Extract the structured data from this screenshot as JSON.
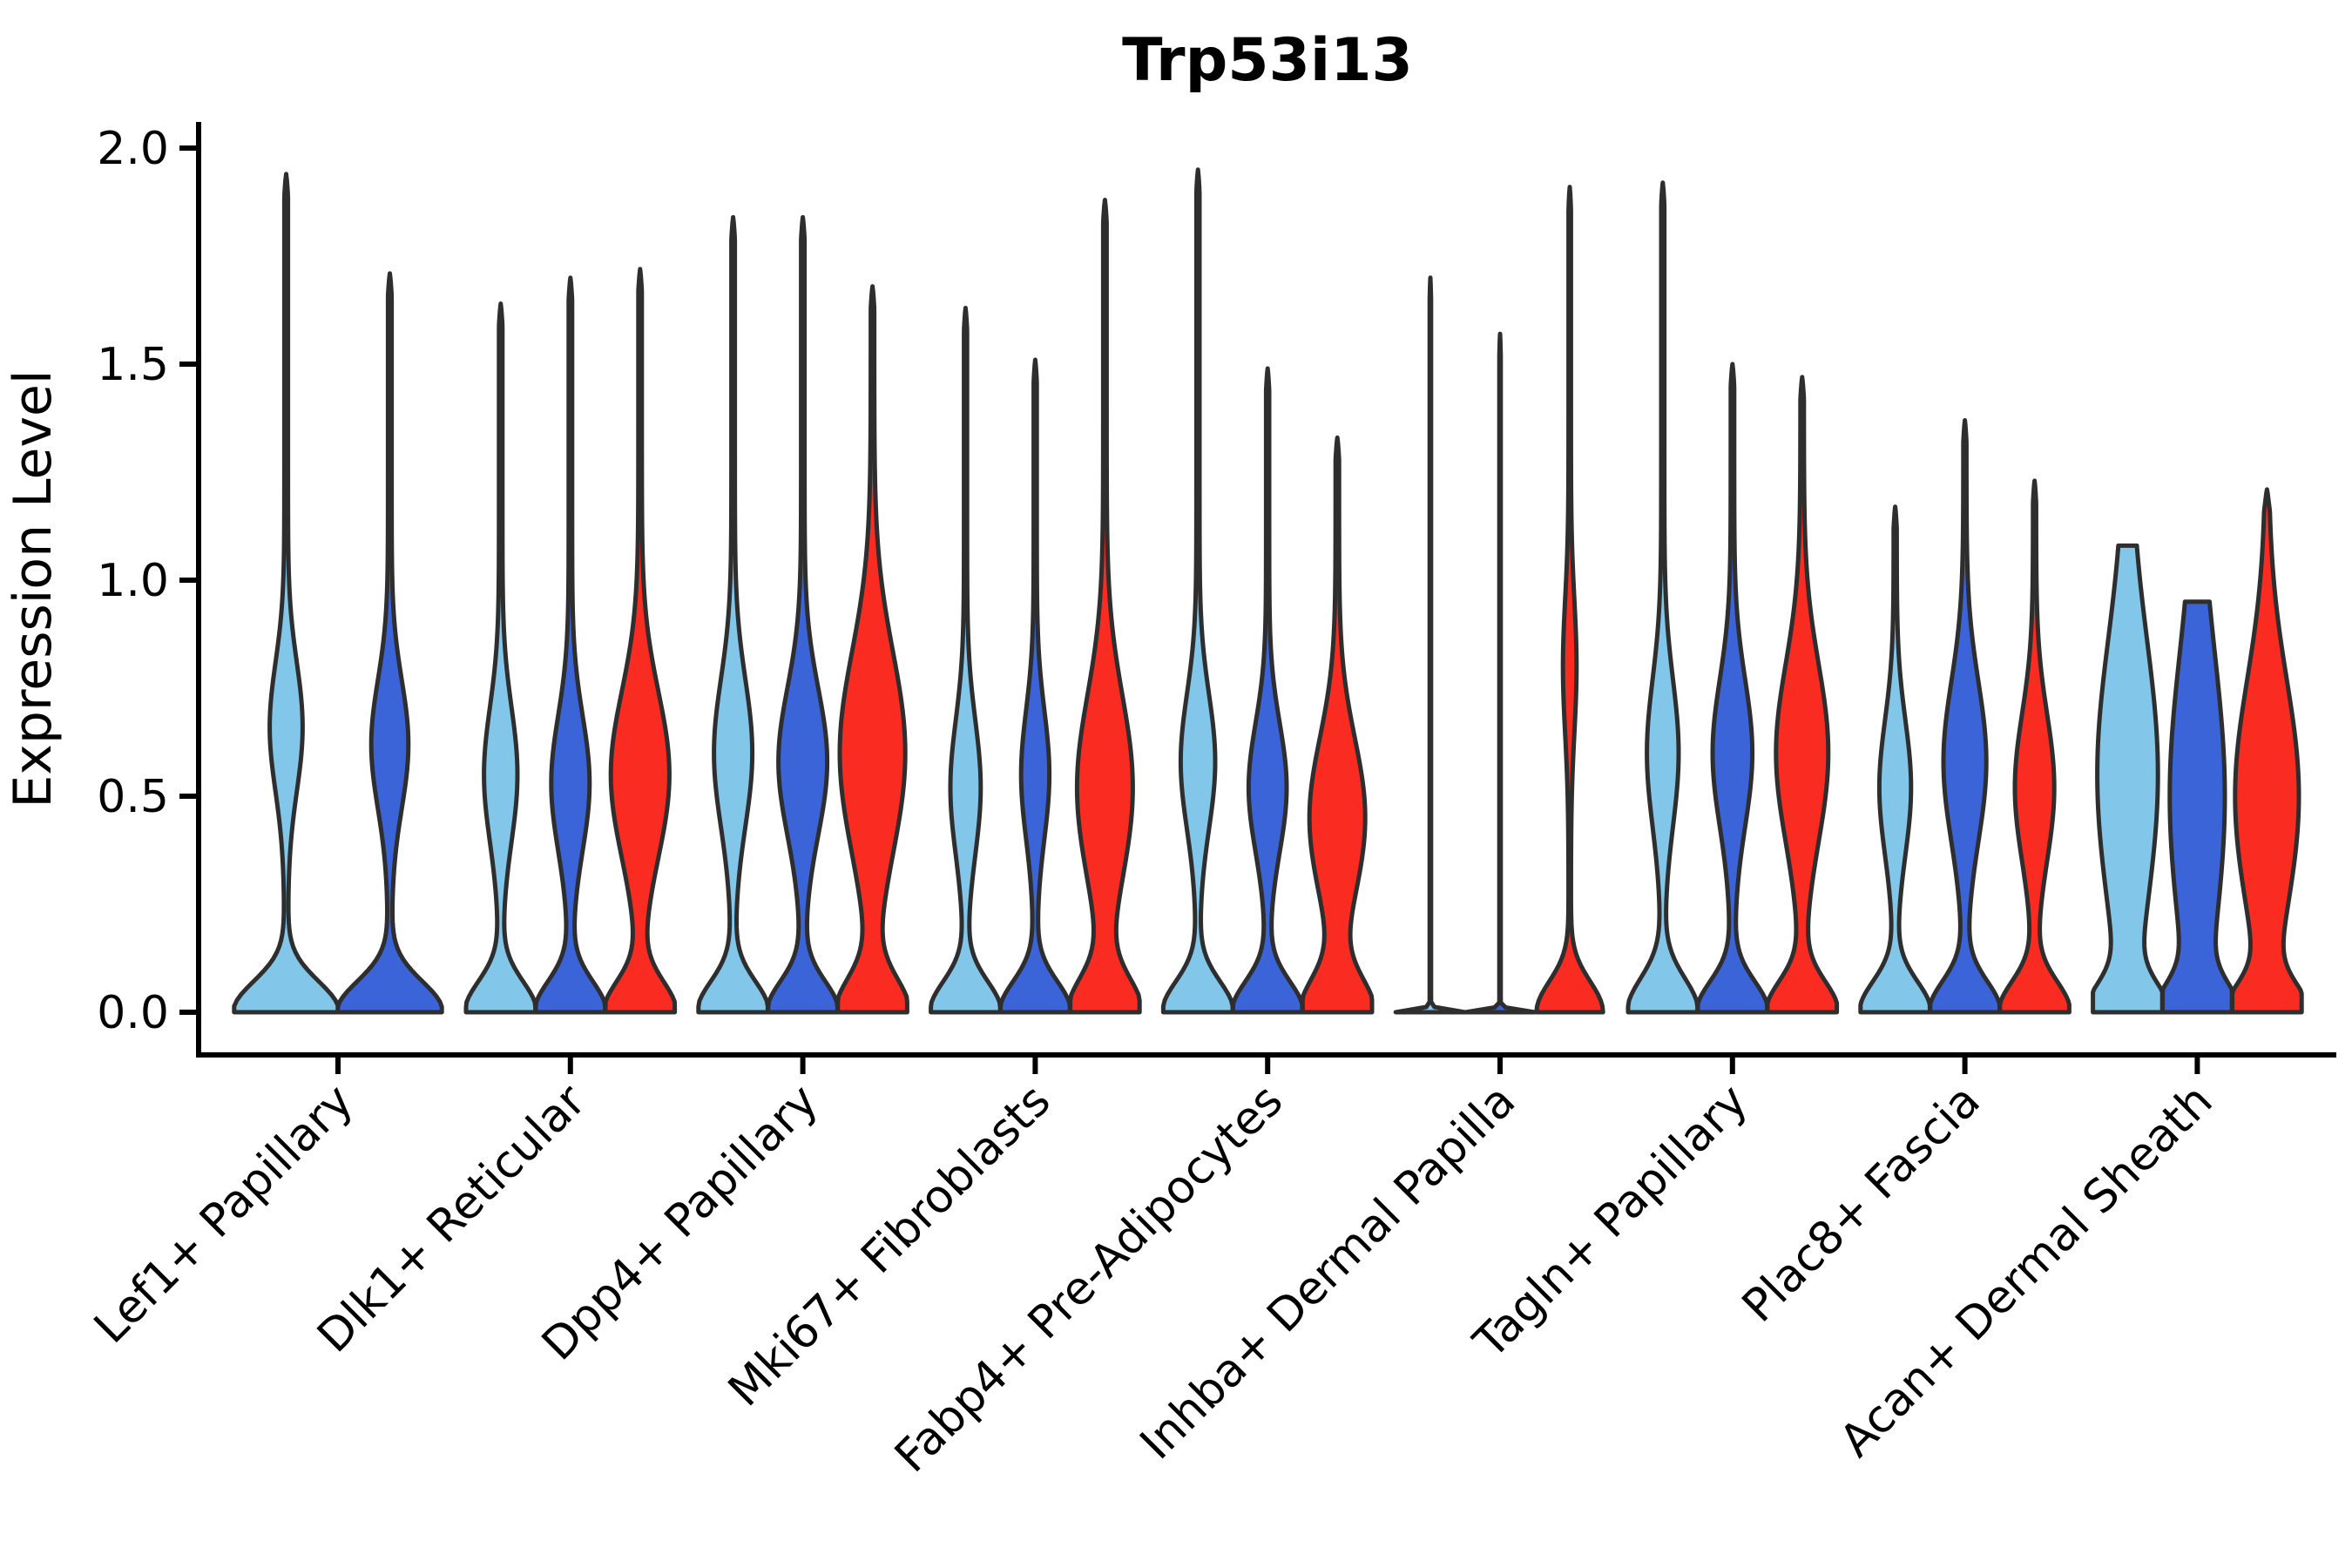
{
  "chart_data": {
    "type": "violin",
    "title": "Trp53i13",
    "ylabel": "Expression Level",
    "xlabel": "",
    "ylim": [
      0,
      2.06
    ],
    "yticks": [
      0.0,
      0.5,
      1.0,
      1.5,
      2.0
    ],
    "ytick_labels": [
      "0.0",
      "0.5",
      "1.0",
      "1.5",
      "2.0"
    ],
    "grid": false,
    "legend_position": "none",
    "x_tick_rotation_deg": 45,
    "series": [
      "light_blue",
      "dark_blue",
      "red"
    ],
    "series_colors": {
      "light_blue": "#82C7EA",
      "dark_blue": "#3B64D9",
      "red": "#FA2B21",
      "violin_outline": "#2E2E2E",
      "axis_color": "#000000"
    },
    "groups": [
      {
        "category": "Lef1+ Papillary",
        "violins": [
          {
            "series": "light_blue",
            "peak": 1.94,
            "base_w": 0.98,
            "base_s": 0.1,
            "bulge_c": 0.66,
            "bulge_w": 0.28,
            "bulge_s": 0.21,
            "stem_w": 0.035,
            "tip": "point"
          },
          {
            "series": "dark_blue",
            "peak": 1.71,
            "base_w": 0.98,
            "base_s": 0.1,
            "bulge_c": 0.62,
            "bulge_w": 0.32,
            "bulge_s": 0.21,
            "stem_w": 0.035,
            "tip": "point"
          }
        ]
      },
      {
        "category": "Dlk1+ Reticular",
        "violins": [
          {
            "series": "light_blue",
            "peak": 1.64,
            "base_w": 0.98,
            "base_s": 0.1,
            "bulge_c": 0.55,
            "bulge_w": 0.43,
            "bulge_s": 0.22,
            "stem_w": 0.05,
            "tip": "point"
          },
          {
            "series": "dark_blue",
            "peak": 1.7,
            "base_w": 0.98,
            "base_s": 0.1,
            "bulge_c": 0.53,
            "bulge_w": 0.5,
            "bulge_s": 0.22,
            "stem_w": 0.05,
            "tip": "point"
          },
          {
            "series": "red",
            "peak": 1.72,
            "base_w": 0.98,
            "base_s": 0.1,
            "bulge_c": 0.55,
            "bulge_w": 0.79,
            "bulge_s": 0.27,
            "stem_w": 0.05,
            "tip": "point"
          }
        ]
      },
      {
        "category": "Dpp4+ Papillary",
        "violins": [
          {
            "series": "light_blue",
            "peak": 1.84,
            "base_w": 0.98,
            "base_s": 0.1,
            "bulge_c": 0.6,
            "bulge_w": 0.5,
            "bulge_s": 0.24,
            "stem_w": 0.05,
            "tip": "point"
          },
          {
            "series": "dark_blue",
            "peak": 1.84,
            "base_w": 0.98,
            "base_s": 0.1,
            "bulge_c": 0.58,
            "bulge_w": 0.65,
            "bulge_s": 0.24,
            "stem_w": 0.05,
            "tip": "point"
          },
          {
            "series": "red",
            "peak": 1.68,
            "base_w": 0.98,
            "base_s": 0.11,
            "bulge_c": 0.6,
            "bulge_w": 0.89,
            "bulge_s": 0.33,
            "stem_w": 0.05,
            "tip": "point"
          }
        ]
      },
      {
        "category": "Mki67+ Fibroblasts",
        "violins": [
          {
            "series": "light_blue",
            "peak": 1.63,
            "base_w": 0.98,
            "base_s": 0.1,
            "bulge_c": 0.52,
            "bulge_w": 0.39,
            "bulge_s": 0.22,
            "stem_w": 0.045,
            "tip": "point"
          },
          {
            "series": "dark_blue",
            "peak": 1.51,
            "base_w": 0.98,
            "base_s": 0.1,
            "bulge_c": 0.55,
            "bulge_w": 0.36,
            "bulge_s": 0.21,
            "stem_w": 0.045,
            "tip": "point"
          },
          {
            "series": "red",
            "peak": 1.88,
            "base_w": 0.98,
            "base_s": 0.11,
            "bulge_c": 0.52,
            "bulge_w": 0.75,
            "bulge_s": 0.3,
            "stem_w": 0.05,
            "tip": "point"
          }
        ]
      },
      {
        "category": "Fabp4+ Pre-Adipocytes",
        "violins": [
          {
            "series": "light_blue",
            "peak": 1.95,
            "base_w": 0.98,
            "base_s": 0.1,
            "bulge_c": 0.58,
            "bulge_w": 0.45,
            "bulge_s": 0.22,
            "stem_w": 0.045,
            "tip": "point"
          },
          {
            "series": "dark_blue",
            "peak": 1.49,
            "base_w": 0.98,
            "base_s": 0.1,
            "bulge_c": 0.52,
            "bulge_w": 0.5,
            "bulge_s": 0.21,
            "stem_w": 0.045,
            "tip": "point"
          },
          {
            "series": "red",
            "peak": 1.33,
            "base_w": 0.98,
            "base_s": 0.11,
            "bulge_c": 0.45,
            "bulge_w": 0.75,
            "bulge_s": 0.26,
            "stem_w": 0.05,
            "tip": "point"
          }
        ]
      },
      {
        "category": "Inhba+ Dermal Papilla",
        "violins": [
          {
            "series": "light_blue",
            "peak": 1.7,
            "base_w": 0.98,
            "base_s": 0.008,
            "bulge_c": 0.5,
            "bulge_w": 0.0,
            "bulge_s": 0.2,
            "stem_w": 0.02,
            "tip": "point",
            "collapsed": true
          },
          {
            "series": "dark_blue",
            "peak": 1.57,
            "base_w": 0.98,
            "base_s": 0.008,
            "bulge_c": 0.5,
            "bulge_w": 0.0,
            "bulge_s": 0.2,
            "stem_w": 0.02,
            "tip": "point",
            "collapsed": true
          },
          {
            "series": "red",
            "peak": 1.91,
            "base_w": 0.92,
            "base_s": 0.1,
            "bulge_c": 0.8,
            "bulge_w": 0.16,
            "bulge_s": 0.22,
            "stem_w": 0.035,
            "tip": "point"
          }
        ]
      },
      {
        "category": "Tagln+ Papillary",
        "violins": [
          {
            "series": "light_blue",
            "peak": 1.92,
            "base_w": 0.98,
            "base_s": 0.11,
            "bulge_c": 0.6,
            "bulge_w": 0.41,
            "bulge_s": 0.24,
            "stem_w": 0.045,
            "tip": "point"
          },
          {
            "series": "dark_blue",
            "peak": 1.5,
            "base_w": 0.98,
            "base_s": 0.1,
            "bulge_c": 0.6,
            "bulge_w": 0.52,
            "bulge_s": 0.24,
            "stem_w": 0.05,
            "tip": "point"
          },
          {
            "series": "red",
            "peak": 1.47,
            "base_w": 0.98,
            "base_s": 0.1,
            "bulge_c": 0.6,
            "bulge_w": 0.7,
            "bulge_s": 0.29,
            "stem_w": 0.05,
            "tip": "point"
          }
        ]
      },
      {
        "category": "Plac8+ Fascia",
        "violins": [
          {
            "series": "light_blue",
            "peak": 1.17,
            "base_w": 0.98,
            "base_s": 0.1,
            "bulge_c": 0.52,
            "bulge_w": 0.41,
            "bulge_s": 0.22,
            "stem_w": 0.045,
            "tip": "point"
          },
          {
            "series": "dark_blue",
            "peak": 1.37,
            "base_w": 0.98,
            "base_s": 0.1,
            "bulge_c": 0.58,
            "bulge_w": 0.57,
            "bulge_s": 0.26,
            "stem_w": 0.045,
            "tip": "point"
          },
          {
            "series": "red",
            "peak": 1.23,
            "base_w": 0.98,
            "base_s": 0.1,
            "bulge_c": 0.52,
            "bulge_w": 0.52,
            "bulge_s": 0.24,
            "stem_w": 0.045,
            "tip": "point"
          }
        ]
      },
      {
        "category": "Acan+ Dermal Sheath",
        "violins": [
          {
            "series": "light_blue",
            "peak": 1.08,
            "base_w": 0.94,
            "base_s": 0.09,
            "bulge_c": 0.55,
            "bulge_w": 0.79,
            "bulge_s": 0.44,
            "stem_w": 0.08,
            "tip": "flat"
          },
          {
            "series": "dark_blue",
            "peak": 0.95,
            "base_w": 0.9,
            "base_s": 0.09,
            "bulge_c": 0.5,
            "bulge_w": 0.71,
            "bulge_s": 0.46,
            "stem_w": 0.08,
            "tip": "flat"
          },
          {
            "series": "red",
            "peak": 1.21,
            "base_w": 0.98,
            "base_s": 0.09,
            "bulge_c": 0.5,
            "bulge_w": 0.875,
            "bulge_s": 0.38,
            "stem_w": 0.04,
            "tip": "point"
          }
        ]
      }
    ]
  }
}
